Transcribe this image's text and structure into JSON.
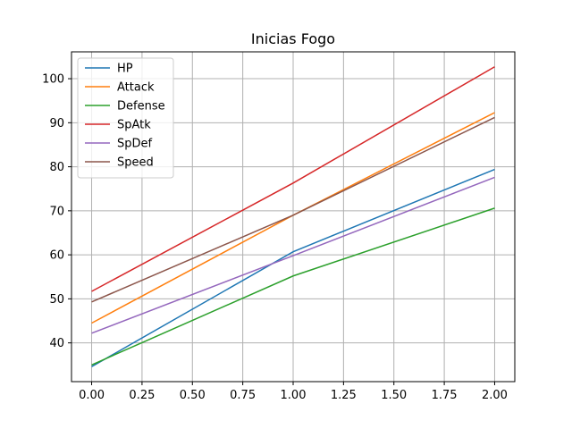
{
  "chart_data": {
    "type": "line",
    "title": "Inicias Fogo",
    "xlabel": "",
    "ylabel": "",
    "x": [
      0,
      1,
      2
    ],
    "xlim": [
      -0.1,
      2.1
    ],
    "ylim": [
      31.2,
      106.1
    ],
    "xticks": [
      0.0,
      0.25,
      0.5,
      0.75,
      1.0,
      1.25,
      1.5,
      1.75,
      2.0
    ],
    "xtick_labels": [
      "0.00",
      "0.25",
      "0.50",
      "0.75",
      "1.00",
      "1.25",
      "1.50",
      "1.75",
      "2.00"
    ],
    "yticks": [
      40,
      50,
      60,
      70,
      80,
      90,
      100
    ],
    "ytick_labels": [
      "40",
      "50",
      "60",
      "70",
      "80",
      "90",
      "100"
    ],
    "grid": true,
    "legend_position": "top-left",
    "series": [
      {
        "name": "HP",
        "values": [
          34.6,
          60.7,
          79.4
        ],
        "color": "#1f77b4"
      },
      {
        "name": "Attack",
        "values": [
          44.5,
          69.0,
          92.3
        ],
        "color": "#ff7f0e"
      },
      {
        "name": "Defense",
        "values": [
          35.0,
          55.2,
          70.6
        ],
        "color": "#2ca02c"
      },
      {
        "name": "SpAtk",
        "values": [
          51.7,
          76.3,
          102.7
        ],
        "color": "#d62728"
      },
      {
        "name": "SpDef",
        "values": [
          42.2,
          59.8,
          77.6
        ],
        "color": "#9467bd"
      },
      {
        "name": "Speed",
        "values": [
          49.3,
          69.0,
          91.2
        ],
        "color": "#8c564b"
      }
    ]
  }
}
